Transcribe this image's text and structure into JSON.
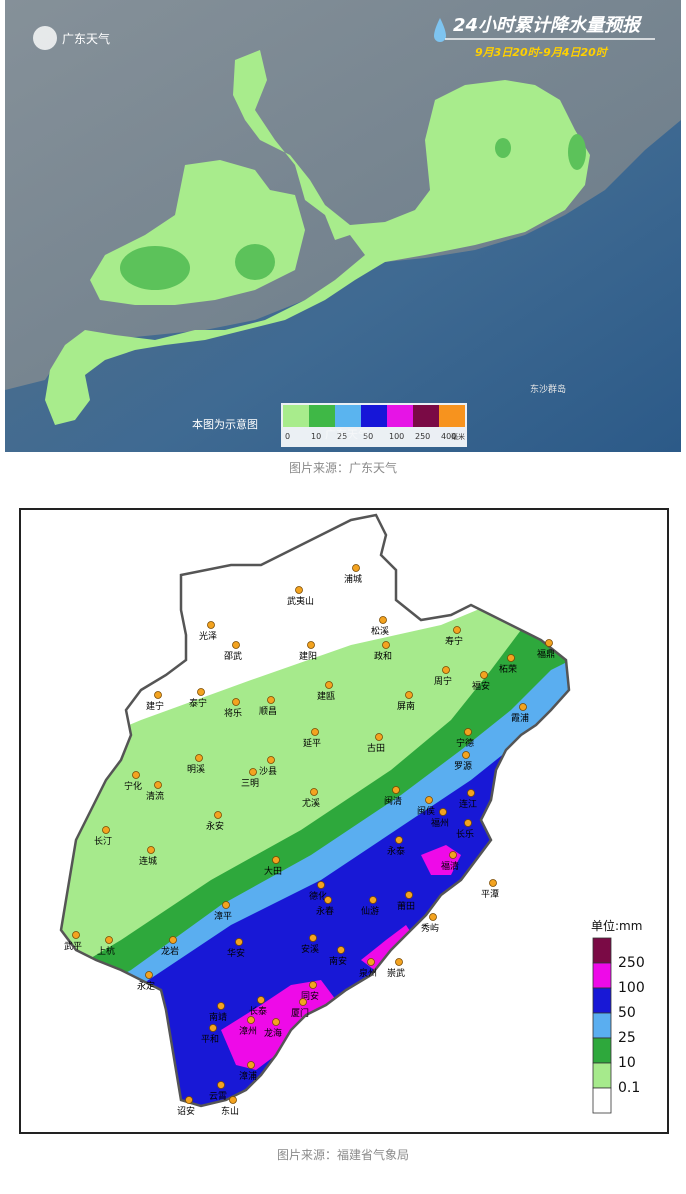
{
  "map1": {
    "logo_text": "广东天气",
    "title": "24小时累计降水量预报",
    "time_range": "9月3日20时-9月4日20时",
    "note": "本图为示意图",
    "island_label": "东沙群岛",
    "legend_ticks": [
      "0",
      "10",
      "25",
      "50",
      "100",
      "250",
      "400"
    ],
    "legend_unit": "毫米",
    "watermark": "广东天气",
    "colors": [
      "#a8ec8c",
      "#3fb846",
      "#5ab4ef",
      "#1616d8",
      "#e614e6",
      "#7a0a45",
      "#f7931e"
    ]
  },
  "caption1": "图片来源：广东天气",
  "map2": {
    "legend_title": "单位:mm",
    "legend": [
      {
        "label": "250",
        "color": "#7a0a45"
      },
      {
        "label": "100",
        "color": "#ee0ae8"
      },
      {
        "label": "50",
        "color": "#1818d6"
      },
      {
        "label": "25",
        "color": "#5aaef0"
      },
      {
        "label": "10",
        "color": "#2ea83c"
      },
      {
        "label": "0.1",
        "color": "#a6ea8c"
      },
      {
        "label": "",
        "color": "#ffffff"
      }
    ],
    "cities": [
      "浦城",
      "武夷山",
      "松溪",
      "寿宁",
      "光泽",
      "邵武",
      "建阳",
      "政和",
      "福鼎",
      "柘荣",
      "周宁",
      "福安",
      "建宁",
      "泰宁",
      "建瓯",
      "屏南",
      "霞浦",
      "将乐",
      "顺昌",
      "延平",
      "古田",
      "宁德",
      "罗源",
      "宁化",
      "清流",
      "明溪",
      "三明",
      "沙县",
      "尤溪",
      "闽清",
      "连江",
      "闽侯",
      "福州",
      "长乐",
      "长汀",
      "永安",
      "永泰",
      "福清",
      "连城",
      "大田",
      "平潭",
      "德化",
      "永春",
      "仙游",
      "莆田",
      "漳平",
      "秀屿",
      "武平",
      "上杭",
      "龙岩",
      "华安",
      "安溪",
      "南安",
      "泉州",
      "崇武",
      "永定",
      "南靖",
      "长泰",
      "同安",
      "厦门",
      "平和",
      "漳州",
      "龙海",
      "漳浦",
      "云霄",
      "诏安",
      "东山"
    ]
  },
  "caption2": "图片来源：福建省气象局"
}
